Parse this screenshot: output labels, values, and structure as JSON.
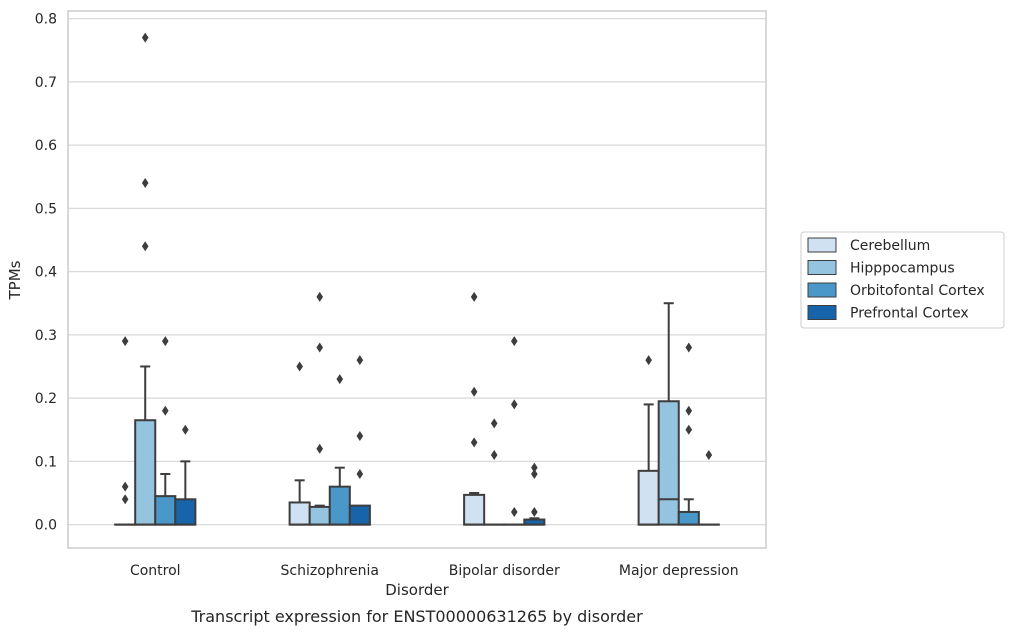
{
  "chart_data": {
    "type": "boxplot",
    "caption": "Transcript expression for ENST00000631265 by disorder",
    "xlabel": "Disorder",
    "ylabel": "TPMs",
    "ylim": [
      -0.037,
      0.812
    ],
    "yticks": [
      0.0,
      0.1,
      0.2,
      0.3,
      0.4,
      0.5,
      0.6,
      0.7,
      0.8
    ],
    "ytick_labels": [
      "0.0",
      "0.1",
      "0.2",
      "0.3",
      "0.4",
      "0.5",
      "0.6",
      "0.7",
      "0.8"
    ],
    "categories": [
      "Control",
      "Schizophrenia",
      "Bipolar disorder",
      "Major depression"
    ],
    "grid": "horizontal",
    "legend_position": "right",
    "series": [
      {
        "name": "Cerebellum",
        "color": "#d0e1f2",
        "boxes": [
          {
            "whislo": 0.0,
            "q1": 0.0,
            "med": 0.0,
            "q3": 0.0,
            "whishi": 0.0,
            "fliers": [
              0.29,
              0.06,
              0.04
            ]
          },
          {
            "whislo": 0.0,
            "q1": 0.0,
            "med": 0.0,
            "q3": 0.035,
            "whishi": 0.07,
            "fliers": [
              0.25
            ]
          },
          {
            "whislo": 0.0,
            "q1": 0.0,
            "med": 0.0,
            "q3": 0.047,
            "whishi": 0.05,
            "fliers": [
              0.36,
              0.21,
              0.13
            ]
          },
          {
            "whislo": 0.0,
            "q1": 0.0,
            "med": 0.0,
            "q3": 0.085,
            "whishi": 0.19,
            "fliers": [
              0.26
            ]
          }
        ]
      },
      {
        "name": "Hipppocampus",
        "color": "#94c4df",
        "boxes": [
          {
            "whislo": 0.0,
            "q1": 0.0,
            "med": 0.0,
            "q3": 0.165,
            "whishi": 0.25,
            "fliers": [
              0.77,
              0.54,
              0.44
            ]
          },
          {
            "whislo": 0.0,
            "q1": 0.0,
            "med": 0.0,
            "q3": 0.028,
            "whishi": 0.03,
            "fliers": [
              0.36,
              0.28,
              0.12
            ]
          },
          {
            "whislo": 0.0,
            "q1": 0.0,
            "med": 0.0,
            "q3": 0.0,
            "whishi": 0.0,
            "fliers": [
              0.16,
              0.11
            ]
          },
          {
            "whislo": 0.0,
            "q1": 0.0,
            "med": 0.04,
            "q3": 0.195,
            "whishi": 0.35,
            "fliers": []
          }
        ]
      },
      {
        "name": "Orbitofontal Cortex",
        "color": "#4a98c9",
        "boxes": [
          {
            "whislo": 0.0,
            "q1": 0.0,
            "med": 0.0,
            "q3": 0.045,
            "whishi": 0.08,
            "fliers": [
              0.29,
              0.18
            ]
          },
          {
            "whislo": 0.0,
            "q1": 0.0,
            "med": 0.0,
            "q3": 0.06,
            "whishi": 0.09,
            "fliers": [
              0.23
            ]
          },
          {
            "whislo": 0.0,
            "q1": 0.0,
            "med": 0.0,
            "q3": 0.0,
            "whishi": 0.0,
            "fliers": [
              0.29,
              0.19,
              0.02
            ]
          },
          {
            "whislo": 0.0,
            "q1": 0.0,
            "med": 0.0,
            "q3": 0.02,
            "whishi": 0.04,
            "fliers": [
              0.28,
              0.18,
              0.15
            ]
          }
        ]
      },
      {
        "name": "Prefrontal Cortex",
        "color": "#1764ab",
        "boxes": [
          {
            "whislo": 0.0,
            "q1": 0.0,
            "med": 0.0,
            "q3": 0.04,
            "whishi": 0.1,
            "fliers": [
              0.15
            ]
          },
          {
            "whislo": 0.0,
            "q1": 0.0,
            "med": 0.0,
            "q3": 0.03,
            "whishi": 0.03,
            "fliers": [
              0.26,
              0.14,
              0.08
            ]
          },
          {
            "whislo": 0.0,
            "q1": 0.0,
            "med": 0.0,
            "q3": 0.008,
            "whishi": 0.01,
            "fliers": [
              0.09,
              0.08,
              0.02
            ]
          },
          {
            "whislo": 0.0,
            "q1": 0.0,
            "med": 0.0,
            "q3": 0.0,
            "whishi": 0.0,
            "fliers": [
              0.11
            ]
          }
        ]
      }
    ]
  }
}
